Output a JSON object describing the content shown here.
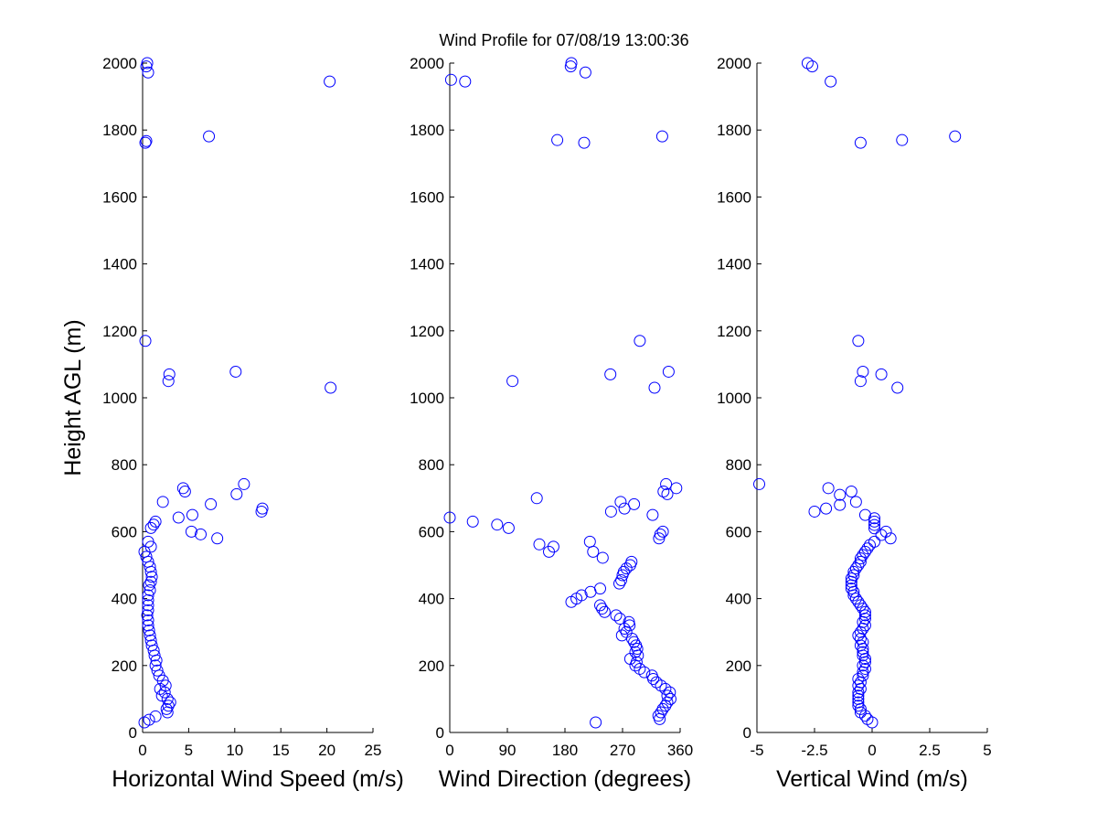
{
  "figure": {
    "title": "Wind Profile for  07/08/19 13:00:36",
    "marker_color": "#0000ff",
    "axis_color": "#000000",
    "background": "#ffffff"
  },
  "chart_data": [
    {
      "type": "scatter",
      "xlabel": "Horizontal Wind Speed (m/s)",
      "ylabel": "Height AGL (m)",
      "xlim": [
        0,
        25
      ],
      "ylim": [
        0,
        2000
      ],
      "xticks": [
        0,
        5,
        10,
        15,
        20,
        25
      ],
      "xtick_labels": [
        "0",
        "5",
        "10",
        "15",
        "20",
        "25"
      ],
      "yticks": [
        0,
        200,
        400,
        600,
        800,
        1000,
        1200,
        1400,
        1600,
        1800,
        2000
      ],
      "ytick_labels": [
        "0",
        "200",
        "400",
        "600",
        "800",
        "1000",
        "1200",
        "1400",
        "1600",
        "1800",
        "2000"
      ],
      "grid": false,
      "points": [
        [
          0.5,
          2000
        ],
        [
          0.4,
          1990
        ],
        [
          0.6,
          1972
        ],
        [
          20.3,
          1945
        ],
        [
          7.2,
          1781
        ],
        [
          0.4,
          1767
        ],
        [
          0.3,
          1762
        ],
        [
          0.3,
          1170
        ],
        [
          2.9,
          1070
        ],
        [
          10.1,
          1078
        ],
        [
          2.8,
          1050
        ],
        [
          20.4,
          1030
        ],
        [
          11.0,
          742
        ],
        [
          4.4,
          730
        ],
        [
          4.6,
          720
        ],
        [
          10.2,
          712
        ],
        [
          2.2,
          689
        ],
        [
          7.4,
          682
        ],
        [
          13.0,
          669
        ],
        [
          12.9,
          660
        ],
        [
          3.9,
          642
        ],
        [
          5.4,
          650
        ],
        [
          1.4,
          630
        ],
        [
          1.2,
          621
        ],
        [
          0.9,
          611
        ],
        [
          5.3,
          600
        ],
        [
          6.3,
          592
        ],
        [
          8.1,
          580
        ],
        [
          0.6,
          570
        ],
        [
          0.9,
          555
        ],
        [
          0.2,
          540
        ],
        [
          0.4,
          525
        ],
        [
          0.6,
          510
        ],
        [
          0.8,
          495
        ],
        [
          0.9,
          480
        ],
        [
          1.0,
          465
        ],
        [
          0.9,
          450
        ],
        [
          0.7,
          440
        ],
        [
          0.8,
          425
        ],
        [
          0.6,
          410
        ],
        [
          0.6,
          395
        ],
        [
          0.6,
          380
        ],
        [
          0.6,
          365
        ],
        [
          0.5,
          350
        ],
        [
          0.6,
          335
        ],
        [
          0.6,
          320
        ],
        [
          0.7,
          305
        ],
        [
          0.8,
          290
        ],
        [
          0.9,
          275
        ],
        [
          1.0,
          260
        ],
        [
          1.2,
          245
        ],
        [
          1.3,
          230
        ],
        [
          1.5,
          215
        ],
        [
          1.4,
          200
        ],
        [
          1.6,
          185
        ],
        [
          1.8,
          170
        ],
        [
          2.2,
          155
        ],
        [
          2.5,
          140
        ],
        [
          1.9,
          130
        ],
        [
          2.4,
          120
        ],
        [
          2.1,
          110
        ],
        [
          2.7,
          100
        ],
        [
          3.0,
          90
        ],
        [
          2.8,
          80
        ],
        [
          2.6,
          70
        ],
        [
          2.7,
          60
        ],
        [
          1.4,
          48
        ],
        [
          0.7,
          38
        ],
        [
          0.2,
          30
        ]
      ]
    },
    {
      "type": "scatter",
      "xlabel": "Wind Direction (degrees)",
      "xlim": [
        0,
        360
      ],
      "ylim": [
        0,
        2000
      ],
      "xticks": [
        0,
        90,
        180,
        270,
        360
      ],
      "xtick_labels": [
        "0",
        "90",
        "180",
        "270",
        "360"
      ],
      "yticks": [
        0,
        200,
        400,
        600,
        800,
        1000,
        1200,
        1400,
        1600,
        1800,
        2000
      ],
      "ytick_labels": [
        "0",
        "200",
        "400",
        "600",
        "800",
        "1000",
        "1200",
        "1400",
        "1600",
        "1800",
        "2000"
      ],
      "grid": false,
      "points": [
        [
          190,
          2000
        ],
        [
          189,
          1990
        ],
        [
          212,
          1972
        ],
        [
          2,
          1950
        ],
        [
          24,
          1945
        ],
        [
          332,
          1781
        ],
        [
          168,
          1770
        ],
        [
          210,
          1762
        ],
        [
          297,
          1170
        ],
        [
          98,
          1050
        ],
        [
          251,
          1070
        ],
        [
          342,
          1078
        ],
        [
          320,
          1030
        ],
        [
          334,
          720
        ],
        [
          354,
          730
        ],
        [
          338,
          742
        ],
        [
          340,
          712
        ],
        [
          136,
          700
        ],
        [
          267,
          689
        ],
        [
          288,
          682
        ],
        [
          273,
          669
        ],
        [
          252,
          660
        ],
        [
          317,
          650
        ],
        [
          0,
          642
        ],
        [
          36,
          630
        ],
        [
          74,
          621
        ],
        [
          92,
          611
        ],
        [
          333,
          600
        ],
        [
          329,
          592
        ],
        [
          327,
          580
        ],
        [
          219,
          570
        ],
        [
          162,
          555
        ],
        [
          140,
          562
        ],
        [
          155,
          540
        ],
        [
          224,
          540
        ],
        [
          239,
          522
        ],
        [
          284,
          510
        ],
        [
          282,
          500
        ],
        [
          276,
          490
        ],
        [
          272,
          480
        ],
        [
          270,
          470
        ],
        [
          268,
          455
        ],
        [
          265,
          445
        ],
        [
          235,
          430
        ],
        [
          220,
          420
        ],
        [
          206,
          410
        ],
        [
          198,
          400
        ],
        [
          190,
          390
        ],
        [
          235,
          380
        ],
        [
          238,
          370
        ],
        [
          242,
          360
        ],
        [
          260,
          350
        ],
        [
          266,
          340
        ],
        [
          280,
          330
        ],
        [
          281,
          320
        ],
        [
          273,
          310
        ],
        [
          276,
          300
        ],
        [
          269,
          290
        ],
        [
          285,
          280
        ],
        [
          288,
          270
        ],
        [
          291,
          260
        ],
        [
          293,
          250
        ],
        [
          290,
          240
        ],
        [
          294,
          230
        ],
        [
          282,
          220
        ],
        [
          292,
          210
        ],
        [
          290,
          200
        ],
        [
          297,
          190
        ],
        [
          304,
          180
        ],
        [
          316,
          170
        ],
        [
          318,
          160
        ],
        [
          323,
          150
        ],
        [
          330,
          140
        ],
        [
          337,
          130
        ],
        [
          344,
          120
        ],
        [
          340,
          110
        ],
        [
          345,
          100
        ],
        [
          340,
          90
        ],
        [
          337,
          80
        ],
        [
          333,
          70
        ],
        [
          330,
          60
        ],
        [
          326,
          50
        ],
        [
          328,
          40
        ],
        [
          228,
          30
        ]
      ]
    },
    {
      "type": "scatter",
      "xlabel": "Vertical Wind (m/s)",
      "xlim": [
        -5,
        5
      ],
      "ylim": [
        0,
        2000
      ],
      "xticks": [
        -5,
        -2.5,
        0,
        2.5,
        5
      ],
      "xtick_labels": [
        "-5",
        "-2.5",
        "0",
        "2.5",
        "5"
      ],
      "yticks": [
        0,
        200,
        400,
        600,
        800,
        1000,
        1200,
        1400,
        1600,
        1800,
        2000
      ],
      "ytick_labels": [
        "0",
        "200",
        "400",
        "600",
        "800",
        "1000",
        "1200",
        "1400",
        "1600",
        "1800",
        "2000"
      ],
      "grid": false,
      "points": [
        [
          -2.8,
          2000
        ],
        [
          -2.6,
          1990
        ],
        [
          -1.8,
          1945
        ],
        [
          3.6,
          1781
        ],
        [
          1.3,
          1770
        ],
        [
          -0.5,
          1762
        ],
        [
          -0.6,
          1170
        ],
        [
          -0.5,
          1050
        ],
        [
          -0.4,
          1078
        ],
        [
          0.4,
          1070
        ],
        [
          1.1,
          1030
        ],
        [
          -4.9,
          742
        ],
        [
          -1.9,
          730
        ],
        [
          -1.4,
          710
        ],
        [
          -0.9,
          720
        ],
        [
          -0.7,
          689
        ],
        [
          -1.4,
          680
        ],
        [
          -2.0,
          669
        ],
        [
          -2.5,
          660
        ],
        [
          -0.3,
          650
        ],
        [
          0.1,
          640
        ],
        [
          0.1,
          630
        ],
        [
          0.1,
          620
        ],
        [
          0.1,
          610
        ],
        [
          0.6,
          600
        ],
        [
          0.4,
          590
        ],
        [
          0.8,
          580
        ],
        [
          0.1,
          570
        ],
        [
          -0.1,
          560
        ],
        [
          -0.2,
          550
        ],
        [
          -0.3,
          540
        ],
        [
          -0.4,
          530
        ],
        [
          -0.5,
          520
        ],
        [
          -0.5,
          510
        ],
        [
          -0.6,
          500
        ],
        [
          -0.7,
          490
        ],
        [
          -0.8,
          480
        ],
        [
          -0.8,
          470
        ],
        [
          -0.9,
          460
        ],
        [
          -0.9,
          450
        ],
        [
          -0.9,
          440
        ],
        [
          -0.9,
          430
        ],
        [
          -0.8,
          420
        ],
        [
          -0.8,
          410
        ],
        [
          -0.7,
          400
        ],
        [
          -0.6,
          390
        ],
        [
          -0.5,
          380
        ],
        [
          -0.4,
          370
        ],
        [
          -0.3,
          360
        ],
        [
          -0.3,
          350
        ],
        [
          -0.3,
          340
        ],
        [
          -0.4,
          330
        ],
        [
          -0.3,
          320
        ],
        [
          -0.4,
          310
        ],
        [
          -0.5,
          300
        ],
        [
          -0.6,
          290
        ],
        [
          -0.5,
          280
        ],
        [
          -0.4,
          270
        ],
        [
          -0.5,
          260
        ],
        [
          -0.4,
          250
        ],
        [
          -0.4,
          240
        ],
        [
          -0.4,
          230
        ],
        [
          -0.3,
          220
        ],
        [
          -0.3,
          210
        ],
        [
          -0.4,
          200
        ],
        [
          -0.3,
          190
        ],
        [
          -0.4,
          180
        ],
        [
          -0.4,
          170
        ],
        [
          -0.6,
          160
        ],
        [
          -0.5,
          150
        ],
        [
          -0.6,
          140
        ],
        [
          -0.5,
          130
        ],
        [
          -0.6,
          120
        ],
        [
          -0.6,
          110
        ],
        [
          -0.6,
          100
        ],
        [
          -0.6,
          90
        ],
        [
          -0.6,
          80
        ],
        [
          -0.5,
          70
        ],
        [
          -0.5,
          60
        ],
        [
          -0.3,
          50
        ],
        [
          -0.2,
          40
        ],
        [
          0.0,
          30
        ]
      ]
    }
  ]
}
